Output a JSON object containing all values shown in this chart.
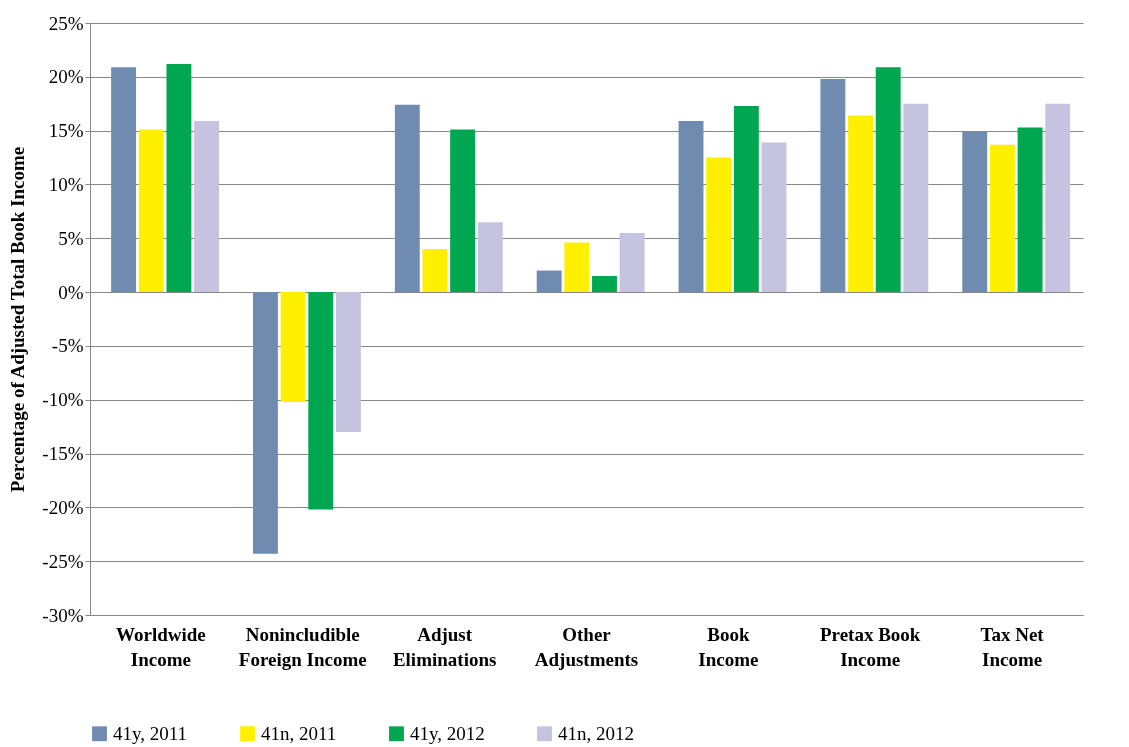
{
  "chart_data": {
    "type": "bar",
    "ylabel": "Percentage of Adjusted Total Book Income",
    "categories": [
      "Worldwide\nIncome",
      "Nonincludible\nForeign Income",
      "Adjust\nEliminations",
      "Other\nAdjustments",
      "Book\nIncome",
      "Pretax Book\nIncome",
      "Tax Net\nIncome"
    ],
    "series": [
      {
        "name": "41y, 2011",
        "color": "#6f8bb0",
        "values": [
          20.9,
          -24.3,
          17.4,
          2.0,
          15.9,
          19.8,
          14.9
        ]
      },
      {
        "name": "41n, 2011",
        "color": "#ffef00",
        "values": [
          15.1,
          -10.2,
          4.0,
          4.6,
          12.5,
          16.4,
          13.7
        ]
      },
      {
        "name": "41y, 2012",
        "color": "#00a650",
        "values": [
          21.2,
          -20.2,
          15.1,
          1.5,
          17.3,
          20.9,
          15.3
        ]
      },
      {
        "name": "41n, 2012",
        "color": "#c6c3e0",
        "values": [
          15.9,
          -13.0,
          6.5,
          5.5,
          13.9,
          17.5,
          17.5
        ]
      }
    ],
    "ylim": [
      -30,
      25
    ],
    "yticks": [
      {
        "value": -30,
        "label": "-30%"
      },
      {
        "value": -25,
        "label": "-25%"
      },
      {
        "value": -20,
        "label": "-20%"
      },
      {
        "value": -15,
        "label": "-15%"
      },
      {
        "value": -10,
        "label": "-10%"
      },
      {
        "value": -5,
        "label": "-5%"
      },
      {
        "value": 0,
        "label": "0%"
      },
      {
        "value": 5,
        "label": "5%"
      },
      {
        "value": 10,
        "label": "10%"
      },
      {
        "value": 15,
        "label": "15%"
      },
      {
        "value": 20,
        "label": "20%"
      },
      {
        "value": 25,
        "label": "25%"
      }
    ],
    "grid": "y",
    "legend": "bottom"
  }
}
